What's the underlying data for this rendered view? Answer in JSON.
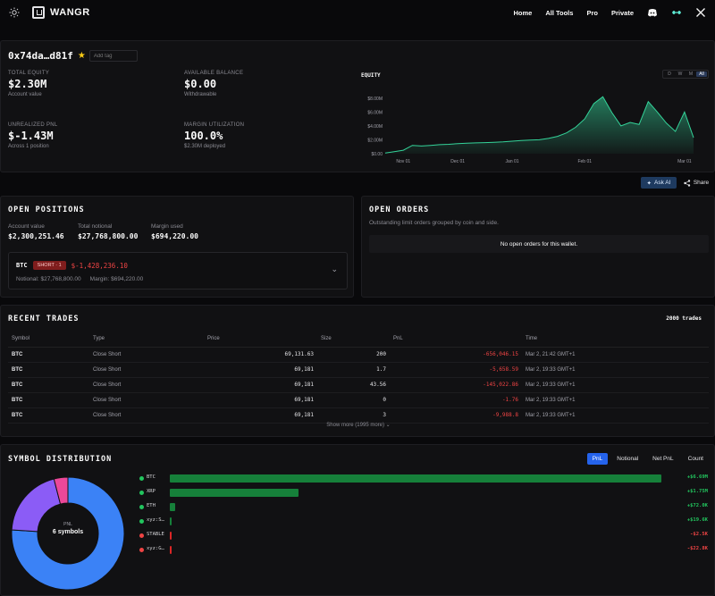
{
  "nav": {
    "brand": "WANGR",
    "links": [
      "Home",
      "All Tools",
      "Pro",
      "Private"
    ]
  },
  "wallet": {
    "address": "0x74da…d81f",
    "tag_placeholder": "Add tag"
  },
  "stats": [
    {
      "label": "TOTAL EQUITY",
      "value": "$2.30M",
      "sub": "Account value"
    },
    {
      "label": "AVAILABLE BALANCE",
      "value": "$0.00",
      "sub": "Withdrawable"
    },
    {
      "label": "UNREALIZED PNL",
      "value": "$-1.43M",
      "sub": "Across 1 position"
    },
    {
      "label": "MARGIN UTILIZATION",
      "value": "100.0%",
      "sub": "$2.30M deployed"
    }
  ],
  "equity_chart": {
    "title": "EQUITY",
    "ranges": [
      "D",
      "W",
      "M",
      "All"
    ],
    "active_range": "All",
    "accent": "#34d399",
    "chart_data": {
      "type": "area",
      "title": "EQUITY",
      "y_ticks": [
        "$8.00M",
        "$6.00M",
        "$4.00M",
        "$2.00M",
        "$0.00"
      ],
      "x_ticks": [
        "Nov 01",
        "Dec 01",
        "Jan 01",
        "Feb 01",
        "Mar 01"
      ],
      "ylim": [
        0,
        9000000
      ],
      "x": [
        "Oct 20",
        "Oct 25",
        "Nov 01",
        "Nov 05",
        "Nov 10",
        "Nov 15",
        "Nov 20",
        "Nov 25",
        "Dec 01",
        "Dec 05",
        "Dec 10",
        "Dec 15",
        "Dec 20",
        "Dec 25",
        "Jan 01",
        "Jan 05",
        "Jan 10",
        "Jan 15",
        "Jan 20",
        "Jan 24",
        "Jan 27",
        "Jan 29",
        "Feb 01",
        "Feb 03",
        "Feb 05",
        "Feb 07",
        "Feb 10",
        "Feb 13",
        "Feb 16",
        "Feb 20",
        "Feb 24",
        "Feb 26",
        "Feb 28",
        "Mar 01",
        "Mar 02"
      ],
      "values": [
        0.1,
        0.3,
        0.5,
        1.2,
        1.1,
        1.2,
        1.3,
        1.35,
        1.45,
        1.5,
        1.55,
        1.6,
        1.65,
        1.7,
        1.8,
        1.9,
        1.95,
        2.0,
        2.2,
        2.5,
        3.0,
        3.8,
        5.0,
        7.2,
        8.2,
        5.9,
        4.0,
        4.5,
        4.2,
        7.5,
        6.0,
        4.4,
        3.2,
        6.0,
        2.3
      ]
    }
  },
  "actions": {
    "ask_ai": "Ask AI",
    "share": "Share"
  },
  "open_positions": {
    "title": "OPEN POSITIONS",
    "summary": [
      {
        "label": "Account value",
        "value": "$2,300,251.46"
      },
      {
        "label": "Total notional",
        "value": "$27,768,800.00"
      },
      {
        "label": "Margin used",
        "value": "$694,220.00"
      }
    ],
    "position": {
      "coin": "BTC",
      "badge": "SHORT · 1",
      "pnl": "$-1,428,236.10",
      "notional": "Notional: $27,768,800.00",
      "margin": "Margin: $694,220.00"
    }
  },
  "open_orders": {
    "title": "OPEN ORDERS",
    "subtitle": "Outstanding limit orders grouped by coin and side.",
    "empty": "No open orders for this wallet."
  },
  "recent_trades": {
    "title": "RECENT TRADES",
    "count": "2000 trades",
    "columns": [
      "Symbol",
      "Type",
      "Price",
      "Size",
      "PnL",
      "Time"
    ],
    "rows": [
      [
        "BTC",
        "Close Short",
        "69,131.63",
        "200",
        "-656,046.15",
        "Mar 2, 21:42 GMT+1"
      ],
      [
        "BTC",
        "Close Short",
        "69,181",
        "1.7",
        "-5,658.59",
        "Mar 2, 19:33 GMT+1"
      ],
      [
        "BTC",
        "Close Short",
        "69,181",
        "43.56",
        "-145,022.86",
        "Mar 2, 19:33 GMT+1"
      ],
      [
        "BTC",
        "Close Short",
        "69,181",
        "0",
        "-1.76",
        "Mar 2, 19:33 GMT+1"
      ],
      [
        "BTC",
        "Close Short",
        "69,181",
        "3",
        "-9,988.8",
        "Mar 2, 19:33 GMT+1"
      ]
    ],
    "show_more": "Show more (1995 more)"
  },
  "symbol_distribution": {
    "title": "SYMBOL DISTRIBUTION",
    "tabs": [
      "PnL",
      "Notional",
      "Net PnL",
      "Count"
    ],
    "active_tab": "PnL",
    "donut_label": "PNL",
    "donut_value": "6 symbols",
    "chart_data": {
      "type": "bar",
      "categories": [
        "BTC",
        "XRP",
        "ETH",
        "xyz:S…",
        "STABLE",
        "xyz:G…"
      ],
      "values": [
        6690000,
        1750000,
        72000,
        19600,
        -2500,
        -22800
      ],
      "value_labels": [
        "+$6.69M",
        "+$1.75M",
        "+$72.0K",
        "+$19.6K",
        "-$2.5K",
        "-$22.8K"
      ],
      "colors": [
        "#22c55e",
        "#22c55e",
        "#22c55e",
        "#22c55e",
        "#ef4444",
        "#ef4444"
      ]
    },
    "donut_share": [
      {
        "name": "BTC",
        "value": 0.76,
        "color": "#3b82f6"
      },
      {
        "name": "XRP",
        "value": 0.2,
        "color": "#8b5cf6"
      },
      {
        "name": "other",
        "value": 0.04,
        "color": "#ec4899"
      }
    ]
  }
}
